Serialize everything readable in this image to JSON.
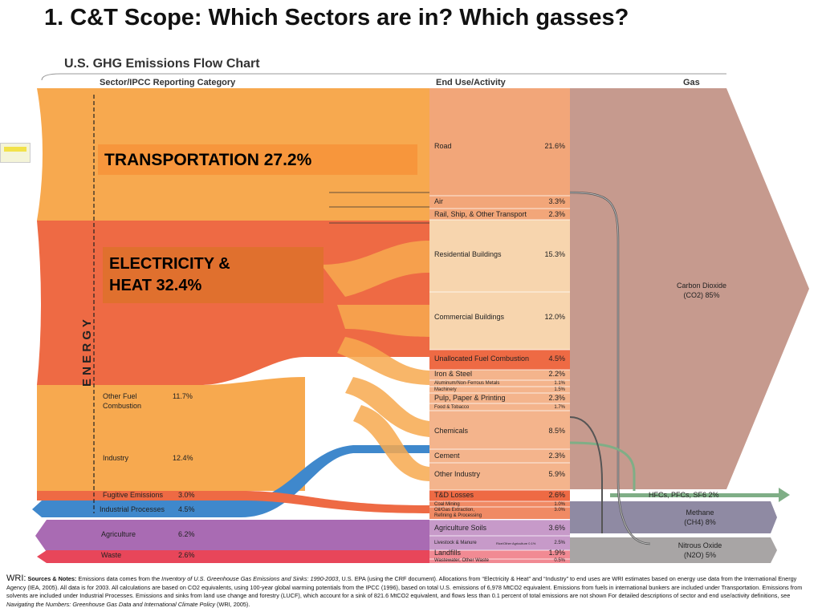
{
  "slide_title": "1. C&T Scope: Which Sectors are in? Which gasses?",
  "callouts": {
    "transportation": "TRANSPORTATION 27.2%",
    "electricity_line1": "ELECTRICITY &",
    "electricity_line2": "HEAT 32.4%"
  },
  "chart_data": {
    "type": "sankey",
    "title": "U.S. GHG Emissions Flow Chart",
    "column_headers": [
      "Sector/IPCC Reporting Category",
      "End Use/Activity",
      "Gas"
    ],
    "energy_label": "E N E R G Y",
    "sectors": [
      {
        "name": "Transportation",
        "value": 27.2,
        "color": "#f7a94f"
      },
      {
        "name": "Electricity & Heat",
        "value": 32.4,
        "color": "#ee6a44"
      },
      {
        "name": "Other Fuel Combustion",
        "label": "11.7%",
        "value": 11.7,
        "color": "#f7a94f"
      },
      {
        "name": "Industry",
        "label": "12.4%",
        "value": 12.4,
        "color": "#f7a94f"
      },
      {
        "name": "Fugitive Emissions",
        "label": "3.0%",
        "value": 3.0,
        "color": "#ee6a44"
      },
      {
        "name": "Industrial Processes",
        "label": "4.5%",
        "value": 4.5,
        "color": "#3f88cc"
      },
      {
        "name": "Agriculture",
        "label": "6.2%",
        "value": 6.2,
        "color": "#a96bb3"
      },
      {
        "name": "Waste",
        "label": "2.6%",
        "value": 2.6,
        "color": "#e8465a"
      }
    ],
    "sector_labels": [
      {
        "name": "Other Fuel",
        "name2": "Combustion",
        "pct": "11.7%"
      },
      {
        "name": "Industry",
        "pct": "12.4%"
      },
      {
        "name": "Fugitive Emissions",
        "pct": "3.0%"
      },
      {
        "name": "Industrial Processes",
        "pct": "4.5%"
      },
      {
        "name": "Agriculture",
        "pct": "6.2%"
      },
      {
        "name": "Waste",
        "pct": "2.6%"
      }
    ],
    "end_uses": [
      {
        "name": "Road",
        "pct": "21.6%",
        "value": 21.6
      },
      {
        "name": "Air",
        "pct": "3.3%",
        "value": 3.3
      },
      {
        "name": "Rail, Ship, & Other Transport",
        "pct": "2.3%",
        "value": 2.3
      },
      {
        "name": "Residential Buildings",
        "pct": "15.3%",
        "value": 15.3
      },
      {
        "name": "Commercial Buildings",
        "pct": "12.0%",
        "value": 12.0
      },
      {
        "name": "Unallocated Fuel Combustion",
        "pct": "4.5%",
        "value": 4.5
      },
      {
        "name": "Iron & Steel",
        "pct": "2.2%",
        "value": 2.2
      },
      {
        "name": "Aluminum/Non-Ferrous Metals",
        "pct": "1.1%",
        "value": 1.1
      },
      {
        "name": "Machinery",
        "pct": "1.5%",
        "value": 1.5
      },
      {
        "name": "Pulp, Paper & Printing",
        "pct": "2.3%",
        "value": 2.3
      },
      {
        "name": "Food & Tobacco",
        "pct": "1.7%",
        "value": 1.7
      },
      {
        "name": "Chemicals",
        "pct": "8.5%",
        "value": 8.5
      },
      {
        "name": "Cement",
        "pct": "2.3%",
        "value": 2.3
      },
      {
        "name": "Other Industry",
        "pct": "5.9%",
        "value": 5.9
      },
      {
        "name": "T&D Losses",
        "pct": "2.6%",
        "value": 2.6
      },
      {
        "name": "Coal Mining",
        "pct": "1.0%",
        "value": 1.0
      },
      {
        "name": "Oil/Gas Extraction,",
        "name2": "Refining & Processing",
        "pct": "3.0%",
        "value": 3.0
      },
      {
        "name": "Agriculture Soils",
        "pct": "3.6%",
        "value": 3.6
      },
      {
        "name": "Livestock & Manure",
        "note": "Rice/Other Agriculture 0.1%",
        "pct": "2.5%",
        "value": 2.5
      },
      {
        "name": "Landfills",
        "pct": "1.9%",
        "value": 1.9
      },
      {
        "name": "Wastewater, Other Waste",
        "pct": "0.5%",
        "value": 0.5
      }
    ],
    "gases": [
      {
        "name": "Carbon Dioxide",
        "formula": "(CO2)",
        "pct": "85%",
        "value": 85,
        "color": "#c69a8e"
      },
      {
        "name": "HFCs, PFCs, SF6",
        "pct": "2%",
        "value": 2,
        "color": "#7fae86"
      },
      {
        "name": "Methane",
        "formula": "(CH4)",
        "pct": "8%",
        "value": 8,
        "color": "#8f8aa3"
      },
      {
        "name": "Nitrous Oxide",
        "formula": "(N2O)",
        "pct": "5%",
        "value": 5,
        "color": "#a8a5a5"
      }
    ]
  },
  "footnote": {
    "wri": "WRI:",
    "sources_label": "Sources & Notes:",
    "text_a": "Emissions data comes from the",
    "inventory": "Inventory of U.S. Greenhouse Gas Emissions and Sinks: 1990-2003",
    "text_b": ", U.S. EPA (using the CRF document). Allocations from “Electricity & Heat” and “Industry” to end uses are WRI estimates based on energy use data from the International Energy Agency (IEA, 2005). All data is for 2003. All calculations are based on CO2 equivalents, using 100-year global warming potentials from the IPCC (1996), based on total U.S. emissions of 6,978 MtCO2 equivalent. Emissions from fuels in international bunkers are included under Transportation. Emissions from solvents are included under Industrial Processes. Emissions and sinks from land use change and forestry (LUCF), which account for a sink of 821.6 MtCO2 equivalent, and flows less than 0.1 percent of total emissions are not shown For detailed descriptions of sector and end use/activity definitions, see",
    "navigating": "Navigating the Numbers: Greenhouse Gas Data and International Climate Policy",
    "text_c": "(WRI, 2005)."
  }
}
